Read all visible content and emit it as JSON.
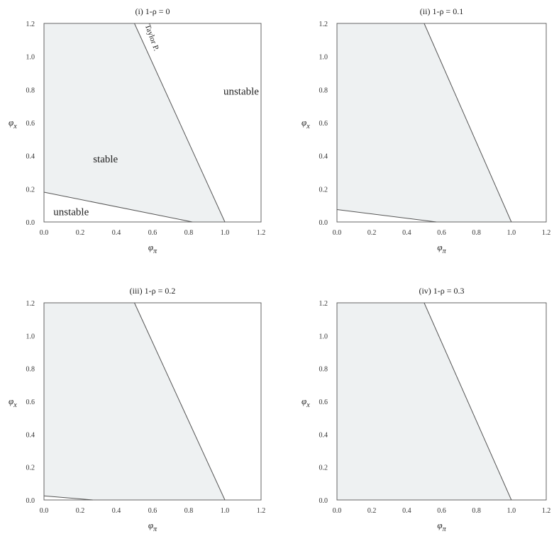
{
  "chart_data": [
    {
      "type": "area",
      "title": "(i) 1-ρ = 0",
      "xlabel": "φπ",
      "ylabel": "φx",
      "xlim": [
        0,
        1.2
      ],
      "ylim": [
        0,
        1.2
      ],
      "xticks": [
        "0.0",
        "0.2",
        "0.4",
        "0.6",
        "0.8",
        "1.0",
        "1.2"
      ],
      "yticks": [
        "0.0",
        "0.2",
        "0.4",
        "0.6",
        "0.8",
        "1.0",
        "1.2"
      ],
      "taylor_line": {
        "x": [
          1.0,
          0.5
        ],
        "y": [
          0.0,
          1.2
        ]
      },
      "lower_line": {
        "x": [
          0.0,
          0.82
        ],
        "y": [
          0.18,
          0.0
        ]
      },
      "annotations": [
        "unstable",
        "stable",
        "unstable",
        "Taylor P."
      ],
      "fill_color": "#eef1f2"
    },
    {
      "type": "area",
      "title": "(ii) 1-ρ = 0.1",
      "xlabel": "φπ",
      "ylabel": "φx",
      "xlim": [
        0,
        1.2
      ],
      "ylim": [
        0,
        1.2
      ],
      "xticks": [
        "0.0",
        "0.2",
        "0.4",
        "0.6",
        "0.8",
        "1.0",
        "1.2"
      ],
      "yticks": [
        "0.0",
        "0.2",
        "0.4",
        "0.6",
        "0.8",
        "1.0",
        "1.2"
      ],
      "taylor_line": {
        "x": [
          1.0,
          0.5
        ],
        "y": [
          0.0,
          1.2
        ]
      },
      "lower_line": {
        "x": [
          0.0,
          0.57
        ],
        "y": [
          0.075,
          0.0
        ]
      },
      "annotations": [],
      "fill_color": "#eef1f2"
    },
    {
      "type": "area",
      "title": "(iii) 1-ρ = 0.2",
      "xlabel": "φπ",
      "ylabel": "φx",
      "xlim": [
        0,
        1.2
      ],
      "ylim": [
        0,
        1.2
      ],
      "xticks": [
        "0.0",
        "0.2",
        "0.4",
        "0.6",
        "0.8",
        "1.0",
        "1.2"
      ],
      "yticks": [
        "0.0",
        "0.2",
        "0.4",
        "0.6",
        "0.8",
        "1.0",
        "1.2"
      ],
      "taylor_line": {
        "x": [
          1.0,
          0.5
        ],
        "y": [
          0.0,
          1.2
        ]
      },
      "lower_line": {
        "x": [
          0.0,
          0.27
        ],
        "y": [
          0.025,
          0.0
        ]
      },
      "annotations": [],
      "fill_color": "#eef1f2"
    },
    {
      "type": "area",
      "title": "(iv) 1-ρ = 0.3",
      "xlabel": "φπ",
      "ylabel": "φx",
      "xlim": [
        0,
        1.2
      ],
      "ylim": [
        0,
        1.2
      ],
      "xticks": [
        "0.0",
        "0.2",
        "0.4",
        "0.6",
        "0.8",
        "1.0",
        "1.2"
      ],
      "yticks": [
        "0.0",
        "0.2",
        "0.4",
        "0.6",
        "0.8",
        "1.0",
        "1.2"
      ],
      "taylor_line": {
        "x": [
          1.0,
          0.5
        ],
        "y": [
          0.0,
          1.2
        ]
      },
      "lower_line": null,
      "annotations": [],
      "fill_color": "#eef1f2"
    }
  ]
}
